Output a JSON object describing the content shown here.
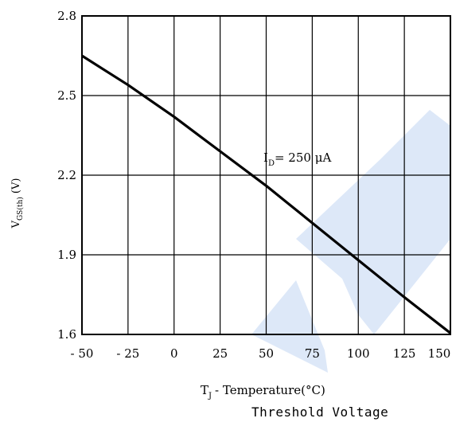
{
  "caption": "Threshold Voltage",
  "watermark_color": "#dde8f8",
  "chart_data": {
    "type": "line",
    "xlabel": {
      "main": "T",
      "sub": "J",
      "rest": "- Temperature(°C)"
    },
    "ylabel": {
      "main": "V",
      "sub": "GS(th)",
      "rest": " (V)"
    },
    "xlim": [
      -50,
      150
    ],
    "ylim": [
      1.6,
      2.8
    ],
    "x_ticks": [
      -50,
      -25,
      0,
      25,
      50,
      75,
      100,
      125,
      150
    ],
    "x_tick_labels": [
      "- 50",
      "- 25",
      "0",
      "25",
      "50",
      "75",
      "100",
      "125",
      "150"
    ],
    "y_ticks": [
      1.6,
      1.9,
      2.2,
      2.5,
      2.8
    ],
    "y_tick_labels": [
      "1.6",
      "1.9",
      "2.2",
      "2.5",
      "2.8"
    ],
    "grid": true,
    "annotation": {
      "main": "I",
      "sub": "D",
      "rest": "= 250 μA"
    },
    "series": [
      {
        "x": [
          -50,
          -25,
          0,
          25,
          50,
          75,
          100,
          125,
          150
        ],
        "y": [
          2.65,
          2.54,
          2.42,
          2.29,
          2.16,
          2.02,
          1.88,
          1.74,
          1.605
        ]
      }
    ]
  }
}
